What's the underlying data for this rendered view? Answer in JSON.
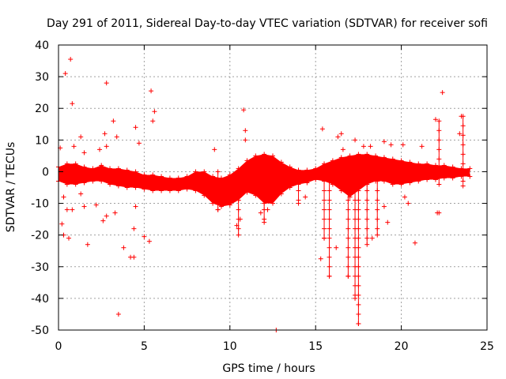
{
  "chart_data": {
    "type": "scatter",
    "title": "Day 291 of 2011, Sidereal Day-to-day VTEC variation (SDTVAR) for receiver sofi",
    "xlabel": "GPS time / hours",
    "ylabel": "SDTVAR / TECUs",
    "xlim": [
      0,
      25
    ],
    "ylim": [
      -50,
      40
    ],
    "xticks": [
      0,
      5,
      10,
      15,
      20,
      25
    ],
    "yticks": [
      40,
      30,
      20,
      10,
      0,
      -10,
      -20,
      -30,
      -40,
      -50
    ],
    "xtick_labels": [
      "0",
      "5",
      "10",
      "15",
      "20",
      "25"
    ],
    "ytick_labels": [
      "40",
      "30",
      "20",
      "10",
      "0",
      "-10",
      "-20",
      "-30",
      "-40",
      "-50"
    ],
    "grid": true,
    "marker": "plus",
    "color": "#ff0000",
    "dense_band": {
      "x": [
        0.0,
        0.5,
        1.0,
        1.5,
        2.0,
        2.5,
        3.0,
        3.5,
        4.0,
        4.5,
        5.0,
        5.5,
        6.0,
        6.5,
        7.0,
        7.5,
        8.0,
        8.5,
        9.0,
        9.5,
        10.0,
        10.5,
        11.0,
        11.5,
        12.0,
        12.5,
        13.0,
        13.5,
        14.0,
        14.5,
        15.0,
        15.5,
        16.0,
        16.5,
        17.0,
        17.5,
        18.0,
        18.5,
        19.0,
        19.5,
        20.0,
        20.5,
        21.0,
        21.5,
        22.0,
        22.5,
        23.0,
        23.5,
        24.0
      ],
      "upper": [
        1.5,
        2.5,
        2.5,
        1.5,
        1.0,
        2.0,
        1.0,
        1.0,
        0.5,
        0.0,
        -1.0,
        -1.0,
        -1.5,
        -2.0,
        -2.0,
        -1.5,
        0.0,
        0.0,
        -1.5,
        -2.0,
        -1.0,
        1.0,
        3.5,
        5.0,
        5.5,
        5.0,
        3.0,
        1.5,
        0.5,
        0.5,
        1.0,
        2.5,
        3.5,
        4.5,
        5.0,
        5.5,
        5.5,
        5.0,
        4.5,
        4.0,
        3.5,
        3.0,
        2.5,
        2.5,
        2.0,
        2.0,
        1.5,
        1.0,
        1.0
      ],
      "lower": [
        -3.0,
        -4.0,
        -4.0,
        -3.5,
        -3.0,
        -3.0,
        -4.0,
        -4.5,
        -5.0,
        -5.0,
        -5.5,
        -6.0,
        -6.0,
        -6.0,
        -6.0,
        -5.5,
        -6.0,
        -7.5,
        -10.0,
        -11.0,
        -10.5,
        -9.0,
        -6.5,
        -7.5,
        -10.0,
        -10.0,
        -7.0,
        -5.0,
        -4.0,
        -3.5,
        -2.5,
        -3.0,
        -4.0,
        -6.0,
        -8.0,
        -6.0,
        -4.0,
        -3.0,
        -3.0,
        -4.0,
        -4.0,
        -3.5,
        -3.0,
        -2.5,
        -2.5,
        -2.0,
        -2.0,
        -1.5,
        -1.5
      ]
    },
    "spikes": [
      {
        "x": 15.5,
        "y_min": -21,
        "y_max": 0
      },
      {
        "x": 15.8,
        "y_min": -33,
        "y_max": 0
      },
      {
        "x": 16.9,
        "y_min": -33,
        "y_max": 0
      },
      {
        "x": 17.5,
        "y_min": -48,
        "y_max": 0
      },
      {
        "x": 17.3,
        "y_min": -40,
        "y_max": 0
      },
      {
        "x": 18.0,
        "y_min": -23,
        "y_max": 0
      },
      {
        "x": 18.6,
        "y_min": -20,
        "y_max": 0
      },
      {
        "x": 14.0,
        "y_min": -10,
        "y_max": 0
      },
      {
        "x": 12.0,
        "y_min": -16,
        "y_max": 0
      },
      {
        "x": 10.5,
        "y_min": -20,
        "y_max": 0
      },
      {
        "x": 9.3,
        "y_min": -12,
        "y_max": 0
      },
      {
        "x": 23.6,
        "y_min": -3,
        "y_max": 17.5
      },
      {
        "x": 22.2,
        "y_min": -4,
        "y_max": 16
      }
    ],
    "outliers": [
      {
        "x": 0.4,
        "y": 31
      },
      {
        "x": 0.7,
        "y": 35.5
      },
      {
        "x": 0.8,
        "y": 21.5
      },
      {
        "x": 2.8,
        "y": 28
      },
      {
        "x": 5.4,
        "y": 25.5
      },
      {
        "x": 5.6,
        "y": 19
      },
      {
        "x": 5.5,
        "y": 16
      },
      {
        "x": 3.2,
        "y": 16
      },
      {
        "x": 3.4,
        "y": 11
      },
      {
        "x": 4.5,
        "y": 14
      },
      {
        "x": 4.7,
        "y": 9
      },
      {
        "x": 10.8,
        "y": 19.5
      },
      {
        "x": 10.9,
        "y": 13
      },
      {
        "x": 9.1,
        "y": 7
      },
      {
        "x": 10.9,
        "y": 10
      },
      {
        "x": 0.2,
        "y": -16.5
      },
      {
        "x": 0.3,
        "y": -20
      },
      {
        "x": 0.6,
        "y": -21
      },
      {
        "x": 0.5,
        "y": -12
      },
      {
        "x": 0.8,
        "y": -12
      },
      {
        "x": 1.7,
        "y": -23
      },
      {
        "x": 2.6,
        "y": -15.5
      },
      {
        "x": 2.8,
        "y": -14
      },
      {
        "x": 3.3,
        "y": -13
      },
      {
        "x": 3.8,
        "y": -24
      },
      {
        "x": 4.2,
        "y": -27
      },
      {
        "x": 4.4,
        "y": -27
      },
      {
        "x": 4.4,
        "y": -18
      },
      {
        "x": 4.5,
        "y": -11
      },
      {
        "x": 5.0,
        "y": -20.5
      },
      {
        "x": 5.3,
        "y": -22
      },
      {
        "x": 3.5,
        "y": -45
      },
      {
        "x": 12.7,
        "y": -50
      },
      {
        "x": 15.3,
        "y": -27.5
      },
      {
        "x": 15.4,
        "y": 13.5
      },
      {
        "x": 16.3,
        "y": 11
      },
      {
        "x": 16.5,
        "y": 12
      },
      {
        "x": 17.3,
        "y": 10
      },
      {
        "x": 17.8,
        "y": 8
      },
      {
        "x": 16.6,
        "y": 7
      },
      {
        "x": 18.2,
        "y": 8
      },
      {
        "x": 20.8,
        "y": -22.5
      },
      {
        "x": 20.4,
        "y": -10
      },
      {
        "x": 20.2,
        "y": -8
      },
      {
        "x": 20.1,
        "y": 8.5
      },
      {
        "x": 21.2,
        "y": 8
      },
      {
        "x": 22.2,
        "y": -13
      },
      {
        "x": 22.1,
        "y": -13
      },
      {
        "x": 22.4,
        "y": 25
      },
      {
        "x": 22.0,
        "y": 16.5
      },
      {
        "x": 23.5,
        "y": 17.5
      },
      {
        "x": 23.4,
        "y": 12
      },
      {
        "x": 23.6,
        "y": -4.5
      },
      {
        "x": 0.1,
        "y": 7.5
      },
      {
        "x": 0.9,
        "y": 8
      },
      {
        "x": 1.3,
        "y": 11
      },
      {
        "x": 1.5,
        "y": 6
      },
      {
        "x": 2.4,
        "y": 7
      },
      {
        "x": 2.7,
        "y": 12
      },
      {
        "x": 2.8,
        "y": 8
      },
      {
        "x": 1.3,
        "y": -7
      },
      {
        "x": 1.5,
        "y": -11
      },
      {
        "x": 2.2,
        "y": -10.5
      },
      {
        "x": 0.3,
        "y": -8
      },
      {
        "x": 19.0,
        "y": 9.5
      },
      {
        "x": 19.4,
        "y": 8.5
      },
      {
        "x": 16.2,
        "y": -24
      },
      {
        "x": 18.3,
        "y": -21
      },
      {
        "x": 19.2,
        "y": -16
      },
      {
        "x": 19.0,
        "y": -11
      },
      {
        "x": 14.4,
        "y": -8
      },
      {
        "x": 13.2,
        "y": -3
      },
      {
        "x": 12.2,
        "y": -12
      },
      {
        "x": 11.8,
        "y": -13
      },
      {
        "x": 10.4,
        "y": -17
      },
      {
        "x": 10.6,
        "y": -15
      }
    ]
  }
}
